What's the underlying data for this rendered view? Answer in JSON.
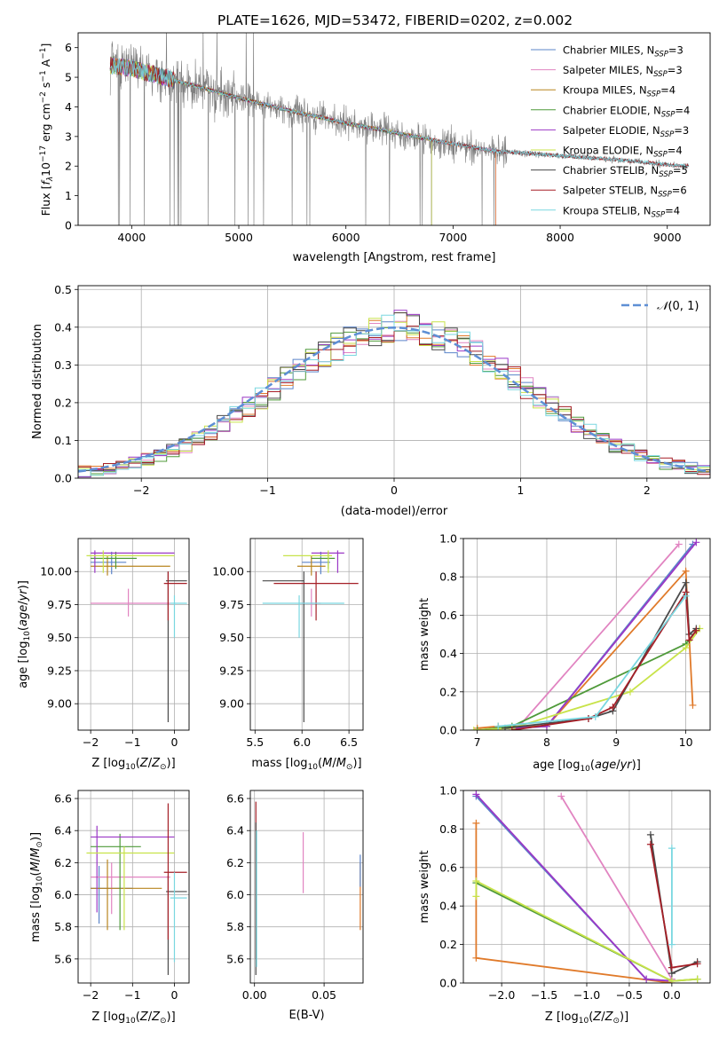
{
  "figure_title": "PLATE=1626, MJD=53472, FIBERID=0202, z=0.002",
  "colors": {
    "Chabrier MILES": "#5b84c9",
    "Salpeter MILES": "#e184c1",
    "Kroupa MILES": "#b8851f",
    "Chabrier ELODIE": "#4f9a3a",
    "Salpeter ELODIE": "#9b38c6",
    "Kroupa ELODIE": "#c8e34a",
    "Chabrier STELIB": "#4a4a4a",
    "Salpeter STELIB": "#a51f27",
    "Kroupa STELIB": "#7ad7e0",
    "Kroupa MILES line": "#e07a2a",
    "data": "#808080",
    "normal": "#5e8fd5",
    "grid": "#b0b0b0"
  },
  "chart_data": [
    {
      "id": "spectrum",
      "type": "line",
      "title": "PLATE=1626, MJD=53472, FIBERID=0202, z=0.002",
      "xlabel": "wavelength [Angstrom, rest frame]",
      "ylabel": "Flux [f_λ 10^-17 erg cm^-2 s^-1 A^-1]",
      "xlim": [
        3500,
        9400
      ],
      "ylim": [
        0,
        6.5
      ],
      "xticks": [
        4000,
        5000,
        6000,
        7000,
        8000,
        9000
      ],
      "yticks": [
        0,
        1,
        2,
        3,
        4,
        5,
        6
      ],
      "legend": "top-right",
      "legend_entries": [
        {
          "name": "Chabrier MILES, N",
          "sub": "SSP",
          "eq": "=3"
        },
        {
          "name": "Salpeter MILES, N",
          "sub": "SSP",
          "eq": "=3"
        },
        {
          "name": "Kroupa MILES, N",
          "sub": "SSP",
          "eq": "=4"
        },
        {
          "name": "Chabrier ELODIE, N",
          "sub": "SSP",
          "eq": "=4"
        },
        {
          "name": "Salpeter ELODIE, N",
          "sub": "SSP",
          "eq": "=3"
        },
        {
          "name": "Kroupa ELODIE, N",
          "sub": "SSP",
          "eq": "=4"
        },
        {
          "name": "Chabrier STELIB, N",
          "sub": "SSP",
          "eq": "=5"
        },
        {
          "name": "Salpeter STELIB, N",
          "sub": "SSP",
          "eq": "=6"
        },
        {
          "name": "Kroupa STELIB, N",
          "sub": "SSP",
          "eq": "=4"
        }
      ],
      "continuum": {
        "x": [
          3800,
          4000,
          4300,
          4600,
          5000,
          5500,
          6000,
          6500,
          7000,
          7400,
          7800,
          8200,
          8600,
          9000,
          9200
        ],
        "y": [
          5.4,
          5.3,
          5.0,
          4.7,
          4.3,
          3.85,
          3.45,
          3.1,
          2.75,
          2.5,
          2.4,
          2.3,
          2.2,
          2.05,
          2.0
        ]
      },
      "model_ends": {
        "MILES": 7400,
        "ELODIE": 6800,
        "STELIB": 9200
      }
    },
    {
      "id": "residuals",
      "type": "bar",
      "xlabel": "(data-model)/error",
      "ylabel": "Normed distribution",
      "xlim": [
        -2.5,
        2.5
      ],
      "ylim": [
        0,
        0.51
      ],
      "xticks": [
        -2,
        -1,
        0,
        1,
        2
      ],
      "yticks": [
        0.0,
        0.1,
        0.2,
        0.3,
        0.4,
        0.5
      ],
      "legend": "top-right",
      "normal_label": "N(0, 1)",
      "bin_width": 0.1,
      "bin_start": -2.5,
      "hist_base": [
        0.018,
        0.021,
        0.026,
        0.032,
        0.04,
        0.049,
        0.06,
        0.073,
        0.087,
        0.103,
        0.122,
        0.143,
        0.165,
        0.19,
        0.212,
        0.237,
        0.263,
        0.287,
        0.309,
        0.33,
        0.349,
        0.365,
        0.38,
        0.39,
        0.398,
        0.404,
        0.398,
        0.39,
        0.38,
        0.365,
        0.349,
        0.33,
        0.309,
        0.287,
        0.263,
        0.237,
        0.212,
        0.19,
        0.165,
        0.143,
        0.122,
        0.103,
        0.087,
        0.073,
        0.06,
        0.049,
        0.04,
        0.032,
        0.026,
        0.021
      ]
    },
    {
      "id": "age-vs-Z",
      "type": "scatter",
      "xlabel": "Z [log10(Z/Z⊙)]",
      "ylabel": "age  [log10(age/yr)]",
      "xlim": [
        -2.3,
        0.35
      ],
      "ylim": [
        8.8,
        10.25
      ],
      "xticks": [
        -2,
        -1,
        0
      ],
      "yticks": [
        9.0,
        9.25,
        9.5,
        9.75,
        10.0
      ],
      "points": [
        {
          "model": "Chabrier MILES",
          "x": -1.5,
          "xe": [
            -2.0,
            -1.15
          ],
          "y": 10.07,
          "ye": [
            9.98,
            10.15
          ]
        },
        {
          "model": "Salpeter MILES",
          "x": -1.1,
          "xe": [
            -2.0,
            -0.1
          ],
          "y": 9.76,
          "ye": [
            9.66,
            9.87
          ]
        },
        {
          "model": "Kroupa MILES",
          "x": -1.6,
          "xe": [
            -2.0,
            -0.1
          ],
          "y": 10.04,
          "ye": [
            9.97,
            10.12
          ]
        },
        {
          "model": "Chabrier ELODIE",
          "x": -1.4,
          "xe": [
            -2.0,
            -0.9
          ],
          "y": 10.1,
          "ye": [
            10.02,
            10.15
          ]
        },
        {
          "model": "Salpeter ELODIE",
          "x": -1.9,
          "xe": [
            -2.0,
            0.0
          ],
          "y": 10.14,
          "ye": [
            9.99,
            10.16
          ]
        },
        {
          "model": "Kroupa ELODIE",
          "x": -1.7,
          "xe": [
            -2.1,
            0.0
          ],
          "y": 10.12,
          "ye": [
            9.99,
            10.16
          ]
        },
        {
          "model": "Chabrier STELIB",
          "x": -0.15,
          "xe": [
            -0.2,
            0.3
          ],
          "y": 9.93,
          "ye": [
            8.86,
            10.0
          ]
        },
        {
          "model": "Salpeter STELIB",
          "x": -0.15,
          "xe": [
            -0.25,
            0.3
          ],
          "y": 9.91,
          "ye": [
            9.63,
            10.0
          ]
        },
        {
          "model": "Kroupa STELIB",
          "x": 0.0,
          "xe": [
            -0.1,
            0.3
          ],
          "y": 9.76,
          "ye": [
            9.5,
            9.82
          ]
        }
      ]
    },
    {
      "id": "age-vs-mass",
      "type": "scatter",
      "xlabel": "mass [log10(M/M⊙)]",
      "ylabel": "",
      "xlim": [
        5.45,
        6.65
      ],
      "ylim": [
        8.8,
        10.25
      ],
      "xticks": [
        5.5,
        6.0,
        6.5
      ],
      "yticks": [
        9.0,
        9.25,
        9.5,
        9.75,
        10.0
      ],
      "points": [
        {
          "model": "Chabrier MILES",
          "x": 6.2,
          "xe": [
            6.0,
            6.3
          ],
          "y": 10.07,
          "ye": [
            9.98,
            10.15
          ]
        },
        {
          "model": "Salpeter MILES",
          "x": 6.1,
          "xe": [
            6.0,
            6.2
          ],
          "y": 9.76,
          "ye": [
            9.66,
            9.87
          ]
        },
        {
          "model": "Kroupa MILES",
          "x": 6.1,
          "xe": [
            5.95,
            6.25
          ],
          "y": 10.04,
          "ye": [
            9.97,
            10.12
          ]
        },
        {
          "model": "Chabrier ELODIE",
          "x": 6.28,
          "xe": [
            6.1,
            6.35
          ],
          "y": 10.1,
          "ye": [
            10.02,
            10.15
          ]
        },
        {
          "model": "Salpeter ELODIE",
          "x": 6.38,
          "xe": [
            6.1,
            6.45
          ],
          "y": 10.14,
          "ye": [
            9.99,
            10.16
          ]
        },
        {
          "model": "Kroupa ELODIE",
          "x": 6.28,
          "xe": [
            5.8,
            6.32
          ],
          "y": 10.12,
          "ye": [
            9.99,
            10.16
          ]
        },
        {
          "model": "Chabrier STELIB",
          "x": 6.02,
          "xe": [
            5.58,
            6.02
          ],
          "y": 9.93,
          "ye": [
            8.86,
            10.0
          ]
        },
        {
          "model": "Salpeter STELIB",
          "x": 6.15,
          "xe": [
            5.7,
            6.6
          ],
          "y": 9.91,
          "ye": [
            9.63,
            10.0
          ]
        },
        {
          "model": "Kroupa STELIB",
          "x": 5.97,
          "xe": [
            5.58,
            6.45
          ],
          "y": 9.76,
          "ye": [
            9.5,
            9.82
          ]
        }
      ]
    },
    {
      "id": "weight-vs-age",
      "type": "line",
      "xlabel": "age  [log10(age/yr)]",
      "ylabel": "mass weight",
      "xlim": [
        6.8,
        10.35
      ],
      "ylim": [
        0.0,
        1.0
      ],
      "xticks": [
        7,
        8,
        9,
        10
      ],
      "yticks": [
        0.0,
        0.2,
        0.4,
        0.6,
        0.8,
        1.0
      ],
      "series": [
        {
          "model": "Chabrier MILES",
          "x": [
            7.5,
            8.0,
            10.1
          ],
          "y": [
            0.01,
            0.02,
            0.97
          ]
        },
        {
          "model": "Salpeter MILES",
          "x": [
            7.3,
            7.6,
            9.9
          ],
          "y": [
            0.02,
            0.02,
            0.97
          ]
        },
        {
          "model": "Kroupa MILES line",
          "x": [
            7.0,
            7.3,
            8.0,
            10.0,
            10.1
          ],
          "y": [
            0.01,
            0.02,
            0.02,
            0.83,
            0.13
          ]
        },
        {
          "model": "Chabrier ELODIE",
          "x": [
            7.0,
            7.5,
            10.0,
            10.15
          ],
          "y": [
            0.0,
            0.02,
            0.45,
            0.52
          ]
        },
        {
          "model": "Salpeter ELODIE",
          "x": [
            7.5,
            8.0,
            10.15
          ],
          "y": [
            0.01,
            0.02,
            0.98
          ]
        },
        {
          "model": "Kroupa ELODIE",
          "x": [
            6.95,
            7.5,
            9.2,
            10.0,
            10.2
          ],
          "y": [
            0.0,
            0.01,
            0.2,
            0.43,
            0.53
          ]
        },
        {
          "model": "Chabrier STELIB",
          "x": [
            7.4,
            8.6,
            8.95,
            10.0,
            10.05,
            10.15
          ],
          "y": [
            0.01,
            0.06,
            0.1,
            0.77,
            0.5,
            0.53
          ]
        },
        {
          "model": "Salpeter STELIB",
          "x": [
            7.5,
            8.6,
            8.95,
            10.0,
            10.05,
            10.15
          ],
          "y": [
            0.0,
            0.06,
            0.12,
            0.72,
            0.47,
            0.52
          ]
        },
        {
          "model": "Kroupa STELIB",
          "x": [
            7.3,
            8.7,
            10.0
          ],
          "y": [
            0.02,
            0.07,
            0.7
          ]
        }
      ]
    },
    {
      "id": "mass-vs-Z",
      "type": "scatter",
      "xlabel": "Z [log10(Z/Z⊙)]",
      "ylabel": "mass [log10(M/M⊙)]",
      "xlim": [
        -2.3,
        0.35
      ],
      "ylim": [
        5.45,
        6.65
      ],
      "xticks": [
        -2,
        -1,
        0
      ],
      "yticks": [
        5.6,
        5.8,
        6.0,
        6.2,
        6.4,
        6.6
      ],
      "points": [
        {
          "model": "Chabrier MILES",
          "x": -1.8,
          "xe": [
            -2.0,
            -1.0
          ],
          "y": 6.04,
          "ye": [
            5.82,
            6.18
          ]
        },
        {
          "model": "Salpeter MILES",
          "x": -1.5,
          "xe": [
            -2.0,
            -0.1
          ],
          "y": 6.11,
          "ye": [
            5.88,
            6.2
          ]
        },
        {
          "model": "Kroupa MILES",
          "x": -1.6,
          "xe": [
            -2.0,
            -0.3
          ],
          "y": 6.04,
          "ye": [
            5.78,
            6.22
          ]
        },
        {
          "model": "Chabrier ELODIE",
          "x": -1.3,
          "xe": [
            -2.0,
            -0.8
          ],
          "y": 6.3,
          "ye": [
            5.78,
            6.38
          ]
        },
        {
          "model": "Salpeter ELODIE",
          "x": -1.85,
          "xe": [
            -2.0,
            0.0
          ],
          "y": 6.36,
          "ye": [
            5.89,
            6.43
          ]
        },
        {
          "model": "Kroupa ELODIE",
          "x": -1.2,
          "xe": [
            -2.1,
            0.0
          ],
          "y": 6.26,
          "ye": [
            5.78,
            6.3
          ]
        },
        {
          "model": "Chabrier STELIB",
          "x": -0.15,
          "xe": [
            -0.2,
            0.3
          ],
          "y": 6.02,
          "ye": [
            5.5,
            6.12
          ]
        },
        {
          "model": "Salpeter STELIB",
          "x": -0.15,
          "xe": [
            -0.25,
            0.3
          ],
          "y": 6.14,
          "ye": [
            5.72,
            6.57
          ]
        },
        {
          "model": "Kroupa STELIB",
          "x": 0.0,
          "xe": [
            -0.1,
            0.3
          ],
          "y": 5.98,
          "ye": [
            5.58,
            6.14
          ]
        }
      ]
    },
    {
      "id": "mass-vs-EBV",
      "type": "scatter",
      "xlabel": "E(B-V)",
      "ylabel": "",
      "xlim": [
        -0.003,
        0.078
      ],
      "ylim": [
        5.45,
        6.65
      ],
      "xticks": [
        0.0,
        0.05
      ],
      "yticks": [
        5.6,
        5.8,
        6.0,
        6.2,
        6.4,
        6.6
      ],
      "points": [
        {
          "model": "Salpeter MILES",
          "x": 0.035,
          "y": 6.2,
          "ye": [
            6.01,
            6.39
          ]
        },
        {
          "model": "Kroupa MILES line",
          "x": 0.076,
          "y": 6.0,
          "ye": [
            5.78,
            6.2
          ]
        },
        {
          "model": "Chabrier MILES",
          "x": 0.076,
          "y": 6.15,
          "ye": [
            6.05,
            6.25
          ]
        },
        {
          "model": "Salpeter STELIB",
          "x": 0.001,
          "y": 6.1,
          "ye": [
            5.6,
            6.58
          ]
        },
        {
          "model": "Chabrier STELIB",
          "x": 0.001,
          "y": 6.0,
          "ye": [
            5.5,
            6.45
          ]
        },
        {
          "model": "Kroupa STELIB",
          "x": 0.0015,
          "y": 6.0,
          "ye": [
            5.55,
            6.4
          ]
        }
      ]
    },
    {
      "id": "weight-vs-Z",
      "type": "line",
      "xlabel": "Z [log10(Z/Z⊙)]",
      "ylabel": "mass weight",
      "xlim": [
        -2.45,
        0.45
      ],
      "ylim": [
        0.0,
        1.0
      ],
      "xticks": [
        -2.0,
        -1.5,
        -1.0,
        -0.5,
        0.0
      ],
      "yticks": [
        0.0,
        0.2,
        0.4,
        0.6,
        0.8,
        1.0
      ],
      "series": [
        {
          "model": "Chabrier MILES",
          "x": [
            -2.3,
            -0.3,
            0.0
          ],
          "y": [
            0.97,
            0.02,
            0.01
          ]
        },
        {
          "model": "Salpeter MILES",
          "x": [
            -1.3,
            0.0
          ],
          "y": [
            0.97,
            0.02
          ]
        },
        {
          "model": "Kroupa MILES line",
          "x": [
            -2.3,
            -2.3,
            0.0
          ],
          "y": [
            0.83,
            0.13,
            0.0
          ]
        },
        {
          "model": "Chabrier ELODIE",
          "x": [
            -2.3,
            0.0,
            0.3
          ],
          "y": [
            0.52,
            0.01,
            0.02
          ]
        },
        {
          "model": "Salpeter ELODIE",
          "x": [
            -2.3,
            -0.3,
            0.0
          ],
          "y": [
            0.98,
            0.02,
            0.01
          ]
        },
        {
          "model": "Kroupa ELODIE",
          "x": [
            -2.3,
            -2.3,
            0.0,
            0.3
          ],
          "y": [
            0.45,
            0.53,
            0.01,
            0.02
          ]
        },
        {
          "model": "Chabrier STELIB",
          "x": [
            -0.25,
            0.0,
            0.3
          ],
          "y": [
            0.77,
            0.05,
            0.11
          ]
        },
        {
          "model": "Salpeter STELIB",
          "x": [
            -0.25,
            0.0,
            0.3
          ],
          "y": [
            0.72,
            0.08,
            0.1
          ]
        },
        {
          "model": "Kroupa STELIB",
          "x": [
            0.0,
            0.0
          ],
          "y": [
            0.7,
            0.2
          ]
        }
      ]
    }
  ]
}
